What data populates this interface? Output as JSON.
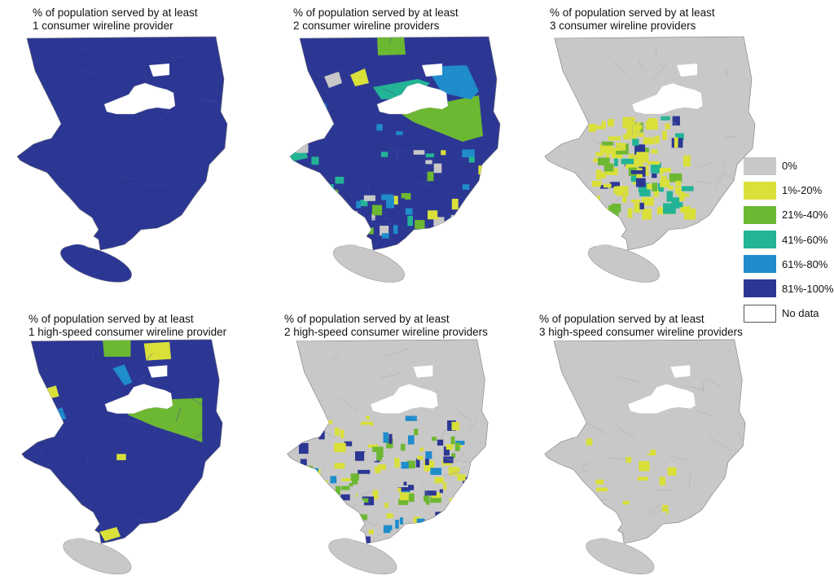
{
  "colors": {
    "c0": "#c9c8c8",
    "c1": "#d9e03a",
    "c2": "#6db832",
    "c3": "#22b495",
    "c4": "#1f8ccc",
    "c5": "#2c3794",
    "none": "#ffffff",
    "outline": "#8a8a8a"
  },
  "panels": [
    {
      "title_line1": "% of population served by at least",
      "title_line2": "1 consumer wireline provider",
      "base": "c5",
      "island": "c5"
    },
    {
      "title_line1": "% of population served by at least",
      "title_line2": "2 consumer wireline providers",
      "base": "c5",
      "island": "c0"
    },
    {
      "title_line1": "% of population served by at least",
      "title_line2": "3 consumer wireline providers",
      "base": "c0",
      "island": "c0"
    },
    {
      "title_line1": "% of population served by at least",
      "title_line2": "1 high-speed consumer wireline provider",
      "base": "c5",
      "island": "c0"
    },
    {
      "title_line1": "% of population served by at least",
      "title_line2": "2 high-speed consumer wireline providers",
      "base": "c0",
      "island": "c0"
    },
    {
      "title_line1": "% of population served by at least",
      "title_line2": "3 high-speed consumer wireline providers",
      "base": "c0",
      "island": "c0"
    }
  ],
  "legend": [
    {
      "label": "0%",
      "color": "c0"
    },
    {
      "label": "1%-20%",
      "color": "c1"
    },
    {
      "label": "21%-40%",
      "color": "c2"
    },
    {
      "label": "41%-60%",
      "color": "c3"
    },
    {
      "label": "61%-80%",
      "color": "c4"
    },
    {
      "label": "81%-100%",
      "color": "c5"
    },
    {
      "label": "No data",
      "color": "none"
    }
  ]
}
